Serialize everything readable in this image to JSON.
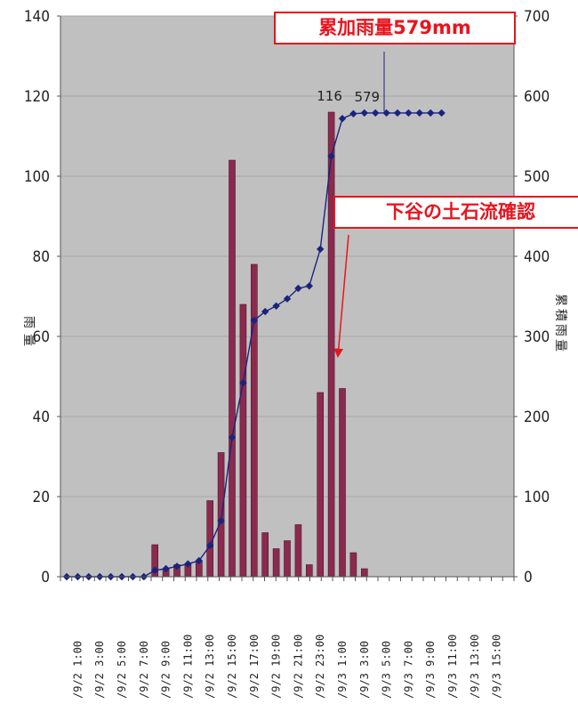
{
  "chart_data": {
    "type": "bar+line",
    "y_left": {
      "label": "雨量",
      "ylim": [
        0,
        140
      ],
      "ticks": [
        0,
        20,
        40,
        60,
        80,
        100,
        120,
        140
      ]
    },
    "y_right": {
      "label": "累積雨量",
      "ylim": [
        0,
        700
      ],
      "ticks": [
        0,
        100,
        200,
        300,
        400,
        500,
        600,
        700
      ]
    },
    "x_tick_labels": [
      "/9/2 1:00",
      "/9/2 3:00",
      "/9/2 5:00",
      "/9/2 7:00",
      "/9/2 9:00",
      "/9/2 11:00",
      "/9/2 13:00",
      "/9/2 15:00",
      "/9/2 17:00",
      "/9/2 19:00",
      "/9/2 21:00",
      "/9/2 23:00",
      "/9/3 1:00",
      "/9/3 3:00",
      "/9/3 5:00",
      "/9/3 7:00",
      "/9/3 9:00",
      "/9/3 11:00",
      "/9/3 13:00",
      "/9/3 15:00"
    ],
    "hourly_rainfall": [
      0,
      0,
      0,
      0,
      0,
      0,
      0,
      0,
      8,
      2,
      3,
      3,
      4,
      19,
      31,
      104,
      68,
      78,
      11,
      7,
      9,
      13,
      3,
      46,
      116,
      47,
      6,
      2,
      0,
      0,
      0,
      0,
      0,
      0,
      0,
      0,
      0,
      0,
      0,
      0,
      0
    ],
    "cumulative_rainfall": [
      0,
      0,
      0,
      0,
      0,
      0,
      0,
      0,
      8,
      10,
      13,
      16,
      20,
      39,
      70,
      174,
      242,
      320,
      331,
      338,
      347,
      360,
      363,
      409,
      525,
      572,
      578,
      579,
      579,
      579,
      579,
      579,
      579,
      579,
      579,
      null,
      null,
      null,
      null,
      null,
      null
    ],
    "data_labels": [
      {
        "index": 24,
        "text": "116",
        "series": "hourly_rainfall"
      },
      {
        "index": 27,
        "text": "579",
        "series": "cumulative_rainfall"
      }
    ],
    "colors": {
      "bars": "#8b2a4e",
      "line": "#1a237e",
      "plot_bg": "#c0c0c0",
      "gridline": "#a8a8a8",
      "callout": "#e8141e"
    }
  },
  "annotations": {
    "total_rainfall": "累加雨量579mm",
    "debris_flow": "下谷の土石流確認"
  }
}
